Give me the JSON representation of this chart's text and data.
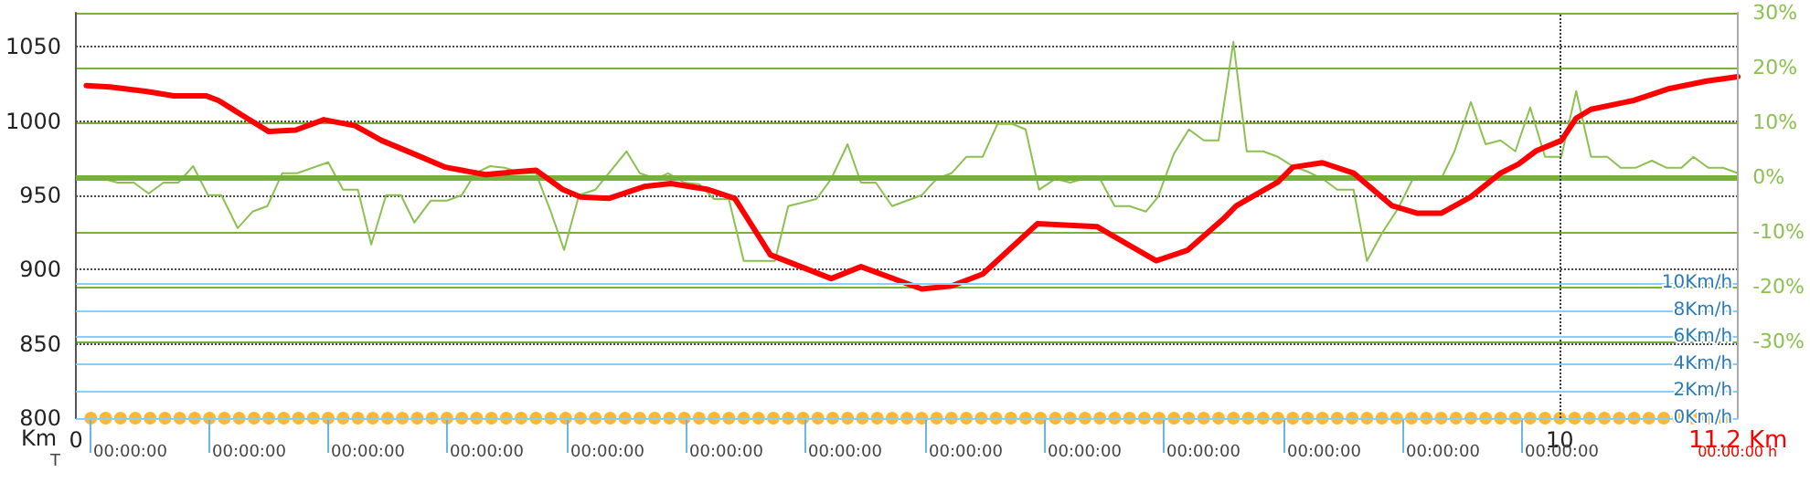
{
  "chart_data": {
    "type": "line",
    "xlabel": "Km",
    "xlim": [
      0,
      11.2
    ],
    "xticks": [
      0,
      10,
      {
        "value": 11.2,
        "label": "11.2 Km"
      }
    ],
    "annotations": [
      "T",
      "00:00:00",
      "00:00:00",
      "00:00:00",
      "00:00:00",
      "00:00:00",
      "00:00:00",
      "00:00:00",
      "00:00:00",
      "00:00:00",
      "00:00:00",
      "00:00:00",
      "00:00:00",
      "00:00:00",
      "00:00:00 h"
    ],
    "ylim": [
      800,
      1073
    ],
    "yticks": [
      800,
      850,
      900,
      950,
      1000,
      1050
    ],
    "y2lim": [
      -44,
      30
    ],
    "y2ticks": [
      {
        "value": -30,
        "label": "-30%"
      },
      {
        "value": -20,
        "label": "-20%"
      },
      {
        "value": -10,
        "label": "-10%"
      },
      {
        "value": 0,
        "label": "0%"
      },
      {
        "value": 10,
        "label": "10%"
      },
      {
        "value": 20,
        "label": "20%"
      },
      {
        "value": 30,
        "label": "30%"
      }
    ],
    "y3lim": [
      0,
      30
    ],
    "y3ticks": [
      {
        "value": 0,
        "label": "0Km/h"
      },
      {
        "value": 2,
        "label": "2Km/h"
      },
      {
        "value": 4,
        "label": "4Km/h"
      },
      {
        "value": 6,
        "label": "6Km/h"
      },
      {
        "value": 8,
        "label": "8Km/h"
      },
      {
        "value": 10,
        "label": "10Km/h"
      }
    ],
    "grid": "y",
    "ref_lines": [
      {
        "axis": "y2",
        "value": 0,
        "color": "#77b139"
      },
      {
        "axis": "x",
        "value": 10,
        "line_style": "dotted",
        "color": "#333333"
      }
    ],
    "series": [
      {
        "axis": "y2",
        "color": "#8cc152",
        "marker": "none",
        "x": [
          0.08,
          0.17,
          0.28,
          0.39,
          0.49,
          0.59,
          0.69,
          0.79,
          0.89,
          0.98,
          1.09,
          1.19,
          1.29,
          1.39,
          1.49,
          1.7,
          1.8,
          1.9,
          1.99,
          2.09,
          2.19,
          2.28,
          2.39,
          2.5,
          2.6,
          2.69,
          2.79,
          2.89,
          3.0,
          3.1,
          3.2,
          3.29,
          3.39,
          3.5,
          3.71,
          3.8,
          3.91,
          3.99,
          4.1,
          4.2,
          4.3,
          4.4,
          4.5,
          4.71,
          4.8,
          4.99,
          5.09,
          5.2,
          5.29,
          5.39,
          5.5,
          5.7,
          5.8,
          5.9,
          6.0,
          6.11,
          6.21,
          6.31,
          6.4,
          6.49,
          6.6,
          6.7,
          6.79,
          6.9,
          7.0,
          7.1,
          7.21,
          7.29,
          7.4,
          7.5,
          7.6,
          7.7,
          7.8,
          7.89,
          8.0,
          8.1,
          8.2,
          8.3,
          8.4,
          8.5,
          8.61,
          8.7,
          8.8,
          8.91,
          9.01,
          9.2,
          9.29,
          9.4,
          9.5,
          9.6,
          9.7,
          9.8,
          9.9,
          10.01,
          10.11,
          10.21,
          10.32,
          10.41,
          10.51,
          10.62,
          10.72,
          10.82,
          10.9,
          11.0,
          11.1,
          11.2
        ],
        "values": [
          -0.2,
          -0.2,
          -1,
          -1,
          -3,
          -1,
          -1,
          2,
          -3.3,
          -3.3,
          -9.3,
          -6.3,
          -5.3,
          0.7,
          0.7,
          2.7,
          -2.3,
          -2.3,
          -12.3,
          -3.3,
          -3.3,
          -8.3,
          -4.3,
          -4.3,
          -3.3,
          0.7,
          2,
          1.7,
          0.7,
          0.7,
          -6.3,
          -13.3,
          -3.3,
          -2.3,
          4.7,
          0.7,
          -0.3,
          0.7,
          -1,
          -1.3,
          -4,
          -4,
          -15.3,
          -15.3,
          -5.3,
          -4,
          -0.3,
          6,
          -1,
          -1,
          -5.3,
          -3.3,
          -0.3,
          0.7,
          3.7,
          3.7,
          9.7,
          9.7,
          8.7,
          -2.3,
          -0.3,
          -1,
          -0.3,
          -0.3,
          -5.3,
          -5.3,
          -6.3,
          -3.7,
          4.3,
          8.7,
          6.7,
          6.7,
          24.7,
          4.7,
          4.7,
          3.7,
          2,
          1,
          -0.3,
          -2.3,
          -2.3,
          -15.3,
          -10.3,
          -5.7,
          -0.3,
          -0.3,
          4.7,
          13.7,
          6,
          6.7,
          4.7,
          12.7,
          3.7,
          3.7,
          15.7,
          3.7,
          3.7,
          1.7,
          1.7,
          3,
          1.7,
          1.7,
          3.7,
          1.7,
          1.7,
          0.7
        ]
      },
      {
        "color": "#ff0000",
        "marker": "none",
        "x": [
          0.07,
          0.23,
          0.48,
          0.66,
          0.88,
          0.96,
          1.12,
          1.3,
          1.48,
          1.67,
          1.88,
          2.06,
          2.3,
          2.49,
          2.76,
          2.98,
          3.1,
          3.28,
          3.4,
          3.59,
          3.83,
          4.01,
          4.26,
          4.44,
          4.68,
          5.09,
          5.29,
          5.7,
          5.9,
          6.11,
          6.48,
          6.88,
          7.28,
          7.49,
          7.73,
          7.82,
          8.1,
          8.2,
          8.4,
          8.61,
          8.87,
          9.04,
          9.2,
          9.4,
          9.6,
          9.72,
          9.84,
          10.01,
          10.11,
          10.21,
          10.5,
          10.74,
          10.99,
          11.2
        ],
        "values": [
          1024,
          1023,
          1020,
          1017,
          1017,
          1014,
          1004,
          993,
          994,
          1001,
          997,
          987,
          977,
          969,
          964,
          966,
          967,
          954,
          949,
          948,
          956,
          958,
          954,
          948,
          910,
          894,
          902,
          887,
          889,
          897,
          931,
          929,
          906,
          913,
          934,
          943,
          959,
          969,
          972,
          965,
          943,
          938,
          938,
          949,
          965,
          971,
          980,
          987,
          1002,
          1008,
          1014,
          1022,
          1027,
          1030
        ]
      },
      {
        "type": "scatter",
        "axis": "y3",
        "color": "#ffa500",
        "marker": "circle",
        "x": [
          0.1,
          0.2,
          0.3,
          0.4,
          0.5,
          0.6,
          0.7,
          0.8,
          0.9,
          1.0,
          1.1,
          1.2,
          1.3,
          1.4,
          1.5,
          1.6,
          1.7,
          1.8,
          1.9,
          2.0,
          2.1,
          2.2,
          2.3,
          2.4,
          2.5,
          2.6,
          2.7,
          2.8,
          2.9,
          3.0,
          3.1,
          3.2,
          3.3,
          3.4,
          3.5,
          3.6,
          3.7,
          3.8,
          3.9,
          4.0,
          4.1,
          4.2,
          4.3,
          4.4,
          4.5,
          4.6,
          4.7,
          4.8,
          4.9,
          5.0,
          5.1,
          5.2,
          5.3,
          5.4,
          5.5,
          5.6,
          5.7,
          5.8,
          5.9,
          6.0,
          6.1,
          6.2,
          6.3,
          6.4,
          6.5,
          6.6,
          6.7,
          6.8,
          6.9,
          7.0,
          7.1,
          7.2,
          7.3,
          7.4,
          7.5,
          7.6,
          7.7,
          7.8,
          7.9,
          8.0,
          8.1,
          8.2,
          8.3,
          8.4,
          8.5,
          8.6,
          8.7,
          8.8,
          8.9,
          9.0,
          9.1,
          9.2,
          9.3,
          9.4,
          9.5,
          9.6,
          9.7,
          9.8,
          9.9,
          10.0,
          10.1,
          10.2,
          10.3,
          10.4,
          10.5,
          10.6,
          10.7,
          10.8,
          10.9,
          11.0,
          11.1
        ],
        "values": [
          0,
          0,
          0,
          0,
          0,
          0,
          0,
          0,
          0,
          0,
          0,
          0,
          0,
          0,
          0,
          0,
          0,
          0,
          0,
          0,
          0,
          0,
          0,
          0,
          0,
          0,
          0,
          0,
          0,
          0,
          0,
          0,
          0,
          0,
          0,
          0,
          0,
          0,
          0,
          0,
          0,
          0,
          0,
          0,
          0,
          0,
          0,
          0,
          0,
          0,
          0,
          0,
          0,
          0,
          0,
          0,
          0,
          0,
          0,
          0,
          0,
          0,
          0,
          0,
          0,
          0,
          0,
          0,
          0,
          0,
          0,
          0,
          0,
          0,
          0,
          0,
          0,
          0,
          0,
          0,
          0,
          0,
          0,
          0,
          0,
          0,
          0,
          0,
          0,
          0,
          0,
          0,
          0,
          0,
          0,
          0,
          0,
          0,
          0,
          0,
          0,
          0,
          0,
          0,
          0,
          0,
          0,
          0,
          0,
          0,
          0
        ]
      }
    ]
  }
}
